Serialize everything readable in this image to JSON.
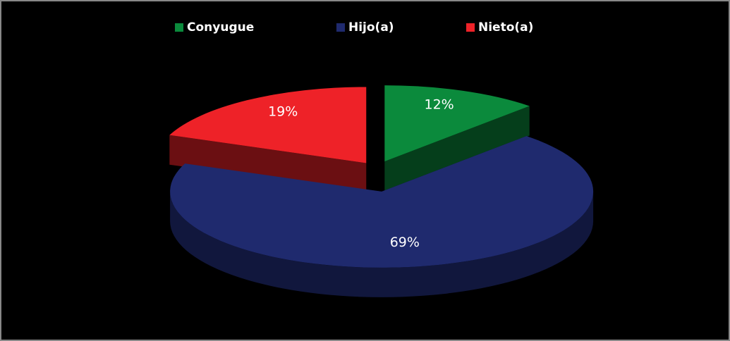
{
  "chart_data": {
    "type": "pie",
    "categories": [
      "Conyugue",
      "Hijo(a)",
      "Nieto(a)"
    ],
    "values": [
      12,
      69,
      19
    ],
    "value_labels": [
      "12%",
      "69%",
      "19%"
    ],
    "colors": [
      "#0b8a3c",
      "#1f2a6e",
      "#ee2228"
    ],
    "legend": "top"
  }
}
